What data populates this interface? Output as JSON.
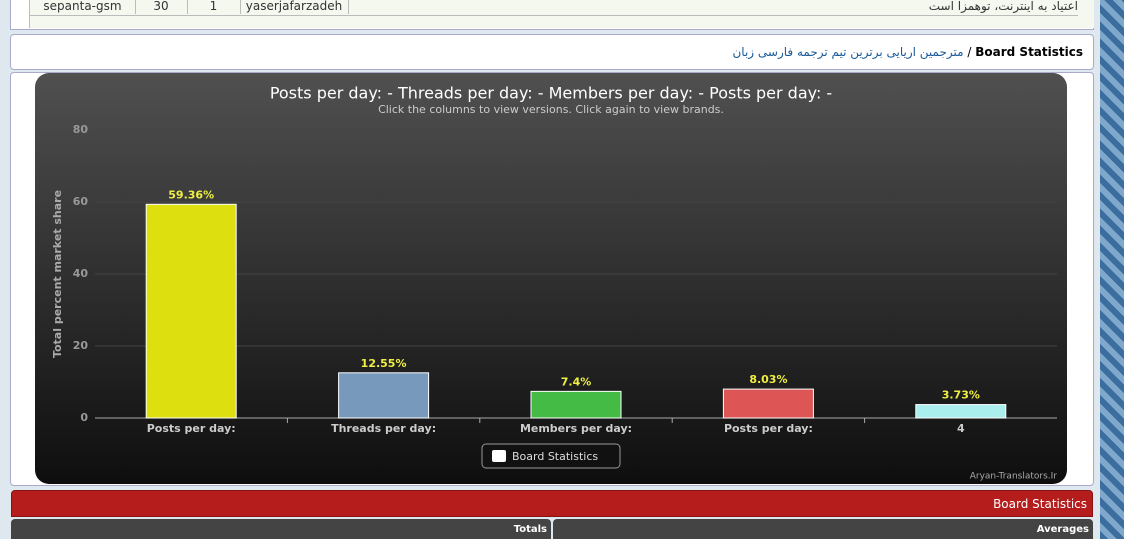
{
  "page": {
    "table_row": [
      "sepanta-gsm",
      "30",
      "1",
      "yaserjafarzadeh",
      "اعتیاد به اینترنت، توهمزا است"
    ],
    "breadcrumb": {
      "current": "Board Statistics",
      "separator": "/",
      "link": "مترجمین اریایی برترین تیم ترجمه فارسی زبان"
    },
    "section_title": "Board Statistics",
    "totals": "Totals",
    "averages": "Averages"
  },
  "chart_data": {
    "type": "bar",
    "title": "Posts per day: - Threads per day: - Members per day: - Posts per day: -",
    "subtitle": "Click the columns to view versions. Click again to view brands.",
    "y_label": "Total percent market share",
    "categories": [
      "Posts per day:",
      "Threads per day:",
      "Members per day:",
      "Posts per day:",
      "4"
    ],
    "series": [
      {
        "name": "Board Statistics",
        "colors": [
          "#dde00e",
          "#7799bb",
          "#44bb44",
          "#dd5555",
          "#aaeeee"
        ],
        "values": [
          59.36,
          12.55,
          7.4,
          8.03,
          3.73
        ],
        "value_labels": [
          "59.36%",
          "12.55%",
          "7.4%",
          "8.03%",
          "3.73%"
        ]
      }
    ],
    "ylim": [
      0,
      80
    ],
    "yticks": [
      0,
      20,
      40,
      60,
      80
    ],
    "grid": true,
    "credit": "Aryan-Translators.Ir"
  }
}
